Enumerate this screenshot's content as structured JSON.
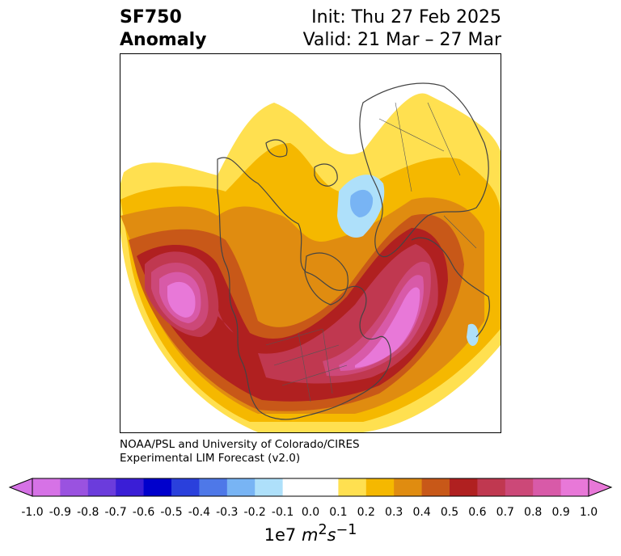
{
  "header": {
    "variable": "SF750",
    "subtitle": "Anomaly",
    "init": "Init: Thu 27 Feb 2025",
    "valid": "Valid: 21 Mar – 27 Mar"
  },
  "credit": {
    "line1": "NOAA/PSL and University of Colorado/CIRES",
    "line2": "Experimental LIM Forecast (v2.0)"
  },
  "colorbar": {
    "ticks": [
      "-1.0",
      "-0.9",
      "-0.8",
      "-0.7",
      "-0.6",
      "-0.5",
      "-0.4",
      "-0.3",
      "-0.2",
      "-0.1",
      "0.0",
      "0.1",
      "0.2",
      "0.3",
      "0.4",
      "0.5",
      "0.6",
      "0.7",
      "0.8",
      "0.9",
      "1.0"
    ],
    "colors": [
      "#d672e6",
      "#9a52e0",
      "#6b3cdc",
      "#3a1ed6",
      "#0000cc",
      "#2a40dc",
      "#4e78e8",
      "#78b4f4",
      "#aee0fa",
      "#ffffff",
      "#ffffff",
      "#ffe050",
      "#f5b800",
      "#e08c10",
      "#c85818",
      "#b02020",
      "#c03850",
      "#cc4878",
      "#d85aa8",
      "#e878d8"
    ],
    "units": "1e7 m²s⁻¹",
    "units_html": "1e7 <i>m</i><sup>2</sup><i>s</i><sup>−1</sup>"
  },
  "map": {
    "projection": "north polar stereographic",
    "field_colors": {
      "lvl1": "#ffe050",
      "lvl2": "#f5b800",
      "lvl3": "#e08c10",
      "lvl4": "#c85818",
      "lvl5": "#b02020",
      "lvl6": "#c03850",
      "lvl7": "#cc4878",
      "lvl8": "#d85aa8",
      "lvl9": "#e878d8",
      "neg1": "#aee0fa",
      "neg2": "#78b4f4",
      "coast": "#444444"
    }
  }
}
